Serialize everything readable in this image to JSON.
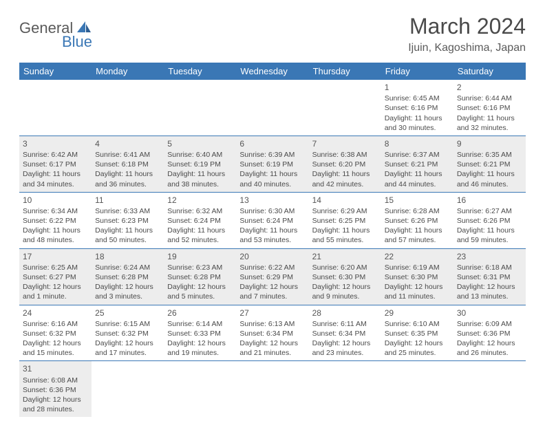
{
  "logo": {
    "word1": "General",
    "word2": "Blue",
    "color1": "#5a5a5a",
    "color2": "#3a77b5"
  },
  "title": "March 2024",
  "location": "Ijuin, Kagoshima, Japan",
  "colors": {
    "header_bg": "#3a77b5",
    "header_fg": "#ffffff",
    "row_alt": "#ededed",
    "border": "#3a77b5"
  },
  "day_headers": [
    "Sunday",
    "Monday",
    "Tuesday",
    "Wednesday",
    "Thursday",
    "Friday",
    "Saturday"
  ],
  "weeks": [
    [
      null,
      null,
      null,
      null,
      null,
      {
        "n": "1",
        "sr": "Sunrise: 6:45 AM",
        "ss": "Sunset: 6:16 PM",
        "dl": "Daylight: 11 hours and 30 minutes."
      },
      {
        "n": "2",
        "sr": "Sunrise: 6:44 AM",
        "ss": "Sunset: 6:16 PM",
        "dl": "Daylight: 11 hours and 32 minutes."
      }
    ],
    [
      {
        "n": "3",
        "sr": "Sunrise: 6:42 AM",
        "ss": "Sunset: 6:17 PM",
        "dl": "Daylight: 11 hours and 34 minutes."
      },
      {
        "n": "4",
        "sr": "Sunrise: 6:41 AM",
        "ss": "Sunset: 6:18 PM",
        "dl": "Daylight: 11 hours and 36 minutes."
      },
      {
        "n": "5",
        "sr": "Sunrise: 6:40 AM",
        "ss": "Sunset: 6:19 PM",
        "dl": "Daylight: 11 hours and 38 minutes."
      },
      {
        "n": "6",
        "sr": "Sunrise: 6:39 AM",
        "ss": "Sunset: 6:19 PM",
        "dl": "Daylight: 11 hours and 40 minutes."
      },
      {
        "n": "7",
        "sr": "Sunrise: 6:38 AM",
        "ss": "Sunset: 6:20 PM",
        "dl": "Daylight: 11 hours and 42 minutes."
      },
      {
        "n": "8",
        "sr": "Sunrise: 6:37 AM",
        "ss": "Sunset: 6:21 PM",
        "dl": "Daylight: 11 hours and 44 minutes."
      },
      {
        "n": "9",
        "sr": "Sunrise: 6:35 AM",
        "ss": "Sunset: 6:21 PM",
        "dl": "Daylight: 11 hours and 46 minutes."
      }
    ],
    [
      {
        "n": "10",
        "sr": "Sunrise: 6:34 AM",
        "ss": "Sunset: 6:22 PM",
        "dl": "Daylight: 11 hours and 48 minutes."
      },
      {
        "n": "11",
        "sr": "Sunrise: 6:33 AM",
        "ss": "Sunset: 6:23 PM",
        "dl": "Daylight: 11 hours and 50 minutes."
      },
      {
        "n": "12",
        "sr": "Sunrise: 6:32 AM",
        "ss": "Sunset: 6:24 PM",
        "dl": "Daylight: 11 hours and 52 minutes."
      },
      {
        "n": "13",
        "sr": "Sunrise: 6:30 AM",
        "ss": "Sunset: 6:24 PM",
        "dl": "Daylight: 11 hours and 53 minutes."
      },
      {
        "n": "14",
        "sr": "Sunrise: 6:29 AM",
        "ss": "Sunset: 6:25 PM",
        "dl": "Daylight: 11 hours and 55 minutes."
      },
      {
        "n": "15",
        "sr": "Sunrise: 6:28 AM",
        "ss": "Sunset: 6:26 PM",
        "dl": "Daylight: 11 hours and 57 minutes."
      },
      {
        "n": "16",
        "sr": "Sunrise: 6:27 AM",
        "ss": "Sunset: 6:26 PM",
        "dl": "Daylight: 11 hours and 59 minutes."
      }
    ],
    [
      {
        "n": "17",
        "sr": "Sunrise: 6:25 AM",
        "ss": "Sunset: 6:27 PM",
        "dl": "Daylight: 12 hours and 1 minute."
      },
      {
        "n": "18",
        "sr": "Sunrise: 6:24 AM",
        "ss": "Sunset: 6:28 PM",
        "dl": "Daylight: 12 hours and 3 minutes."
      },
      {
        "n": "19",
        "sr": "Sunrise: 6:23 AM",
        "ss": "Sunset: 6:28 PM",
        "dl": "Daylight: 12 hours and 5 minutes."
      },
      {
        "n": "20",
        "sr": "Sunrise: 6:22 AM",
        "ss": "Sunset: 6:29 PM",
        "dl": "Daylight: 12 hours and 7 minutes."
      },
      {
        "n": "21",
        "sr": "Sunrise: 6:20 AM",
        "ss": "Sunset: 6:30 PM",
        "dl": "Daylight: 12 hours and 9 minutes."
      },
      {
        "n": "22",
        "sr": "Sunrise: 6:19 AM",
        "ss": "Sunset: 6:30 PM",
        "dl": "Daylight: 12 hours and 11 minutes."
      },
      {
        "n": "23",
        "sr": "Sunrise: 6:18 AM",
        "ss": "Sunset: 6:31 PM",
        "dl": "Daylight: 12 hours and 13 minutes."
      }
    ],
    [
      {
        "n": "24",
        "sr": "Sunrise: 6:16 AM",
        "ss": "Sunset: 6:32 PM",
        "dl": "Daylight: 12 hours and 15 minutes."
      },
      {
        "n": "25",
        "sr": "Sunrise: 6:15 AM",
        "ss": "Sunset: 6:32 PM",
        "dl": "Daylight: 12 hours and 17 minutes."
      },
      {
        "n": "26",
        "sr": "Sunrise: 6:14 AM",
        "ss": "Sunset: 6:33 PM",
        "dl": "Daylight: 12 hours and 19 minutes."
      },
      {
        "n": "27",
        "sr": "Sunrise: 6:13 AM",
        "ss": "Sunset: 6:34 PM",
        "dl": "Daylight: 12 hours and 21 minutes."
      },
      {
        "n": "28",
        "sr": "Sunrise: 6:11 AM",
        "ss": "Sunset: 6:34 PM",
        "dl": "Daylight: 12 hours and 23 minutes."
      },
      {
        "n": "29",
        "sr": "Sunrise: 6:10 AM",
        "ss": "Sunset: 6:35 PM",
        "dl": "Daylight: 12 hours and 25 minutes."
      },
      {
        "n": "30",
        "sr": "Sunrise: 6:09 AM",
        "ss": "Sunset: 6:36 PM",
        "dl": "Daylight: 12 hours and 26 minutes."
      }
    ],
    [
      {
        "n": "31",
        "sr": "Sunrise: 6:08 AM",
        "ss": "Sunset: 6:36 PM",
        "dl": "Daylight: 12 hours and 28 minutes."
      },
      null,
      null,
      null,
      null,
      null,
      null
    ]
  ]
}
